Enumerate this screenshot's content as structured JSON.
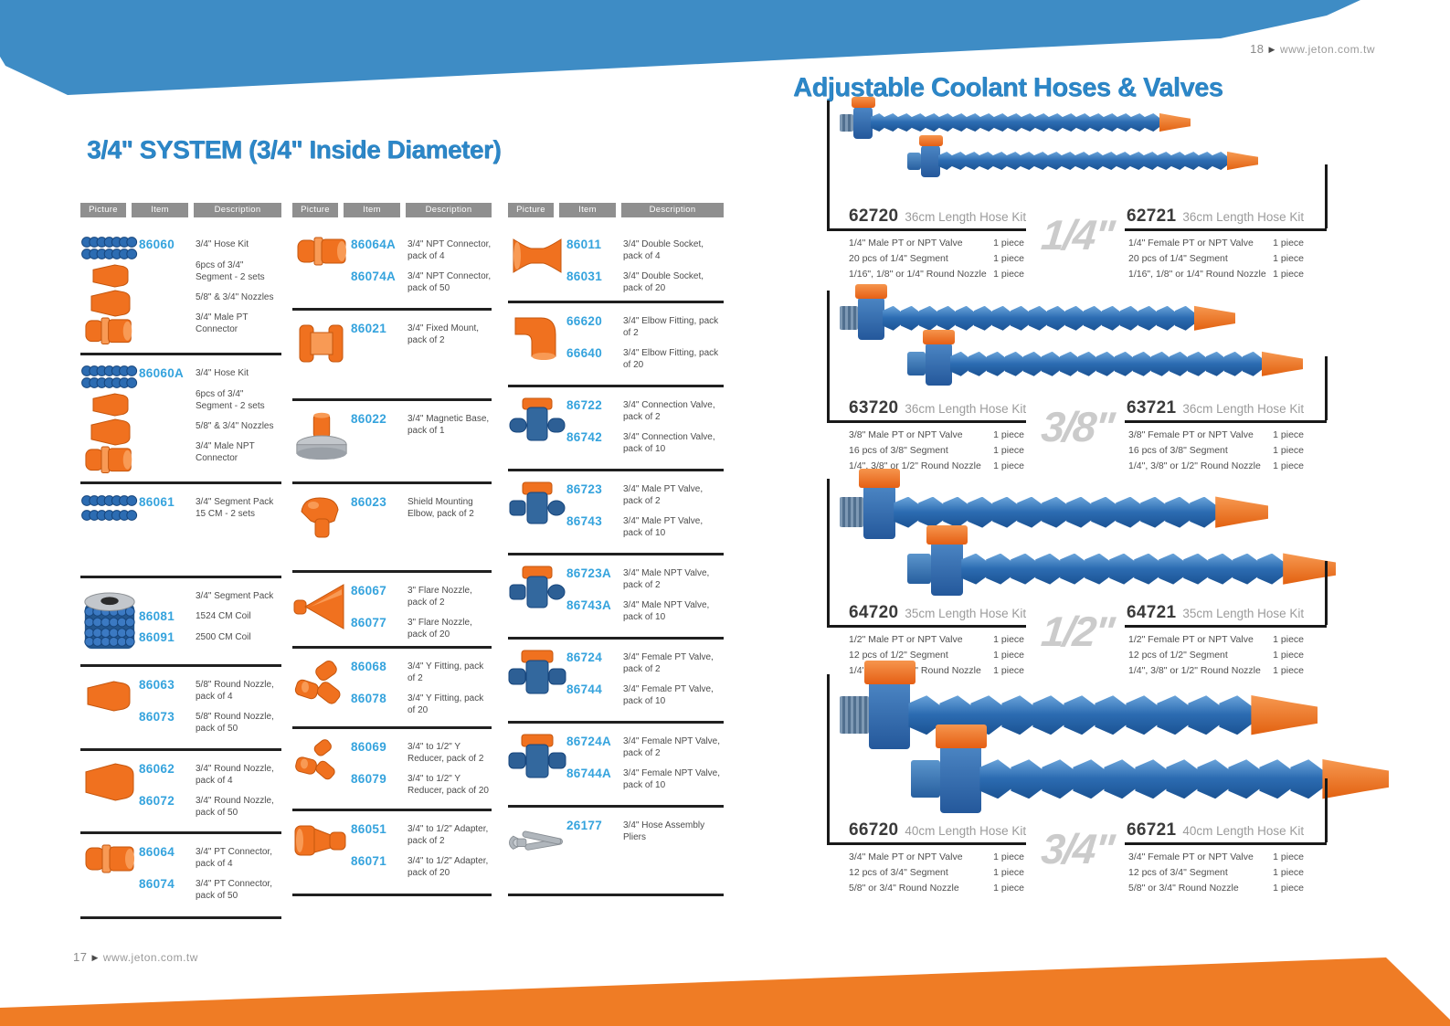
{
  "page": {
    "left_title": "3/4\" SYSTEM (3/4\" Inside Diameter)",
    "right_title": "Adjustable Coolant Hoses & Valves",
    "left_page_number": "17",
    "right_page_number": "18",
    "site_url": "www.jeton.com.tw",
    "arrow_icon": "▶",
    "colors": {
      "band_blue": "#3e8cc5",
      "band_orange": "#ef7c25",
      "title_blue": "#2c87c8",
      "item_blue": "#35a3dd",
      "header_gray": "#8f8f8f",
      "hose_blue": "#2c6cb2",
      "part_orange": "#f0711f"
    }
  },
  "table": {
    "headers": [
      "Picture",
      "Item",
      "Description"
    ],
    "columns": [
      [
        {
          "icon": "hose-kit",
          "lines": [
            {
              "item": "86060",
              "desc": "3/4\" Hose Kit"
            },
            {
              "desc": "6pcs of 3/4\" Segment - 2 sets"
            },
            {
              "desc": "5/8\" & 3/4\" Nozzles"
            },
            {
              "desc": "3/4\" Male PT Connector"
            }
          ]
        },
        {
          "icon": "hose-kit",
          "lines": [
            {
              "item": "86060A",
              "desc": "3/4\" Hose Kit"
            },
            {
              "desc": "6pcs of 3/4\" Segment - 2 sets"
            },
            {
              "desc": "5/8\" & 3/4\" Nozzles"
            },
            {
              "desc": "3/4\" Male NPT Connector"
            }
          ]
        },
        {
          "icon": "segments",
          "lines": [
            {
              "item": "86061",
              "desc": "3/4\" Segment Pack 15 CM - 2 sets"
            }
          ]
        },
        {
          "icon": "coil",
          "lines": [
            {
              "desc": "3/4\" Segment Pack"
            },
            {
              "item": "86081",
              "desc": "1524 CM Coil"
            },
            {
              "item": "86091",
              "desc": "2500 CM Coil"
            }
          ]
        },
        {
          "icon": "nozzle-sm",
          "lines": [
            {
              "item": "86063",
              "desc": "5/8\" Round Nozzle, pack of 4"
            },
            {
              "item": "86073",
              "desc": "5/8\" Round Nozzle, pack of 50"
            }
          ]
        },
        {
          "icon": "nozzle",
          "lines": [
            {
              "item": "86062",
              "desc": "3/4\" Round Nozzle, pack of 4"
            },
            {
              "item": "86072",
              "desc": "3/4\" Round Nozzle, pack of 50"
            }
          ]
        },
        {
          "icon": "connector",
          "lines": [
            {
              "item": "86064",
              "desc": "3/4\" PT Connector, pack of 4"
            },
            {
              "item": "86074",
              "desc": "3/4\" PT Connector, pack of 50"
            }
          ]
        }
      ],
      [
        {
          "icon": "connector",
          "lines": [
            {
              "item": "86064A",
              "desc": "3/4\" NPT Connector, pack of 4"
            },
            {
              "item": "86074A",
              "desc": "3/4\" NPT Connector, pack of 50"
            }
          ]
        },
        {
          "icon": "fixed-mount",
          "lines": [
            {
              "item": "86021",
              "desc": "3/4\" Fixed Mount, pack of 2"
            }
          ]
        },
        {
          "icon": "magnetic-base",
          "lines": [
            {
              "item": "86022",
              "desc": "3/4\" Magnetic Base, pack of 1"
            }
          ]
        },
        {
          "icon": "shield-elbow",
          "lines": [
            {
              "item": "86023",
              "desc": "Shield Mounting Elbow, pack of 2"
            }
          ]
        },
        {
          "icon": "flare-nozzle",
          "lines": [
            {
              "item": "86067",
              "desc": "3\" Flare Nozzle, pack of 2"
            },
            {
              "item": "86077",
              "desc": "3\" Flare Nozzle, pack of 20"
            }
          ]
        },
        {
          "icon": "y-fitting",
          "lines": [
            {
              "item": "86068",
              "desc": "3/4\" Y Fitting, pack of 2"
            },
            {
              "item": "86078",
              "desc": "3/4\" Y Fitting, pack of 20"
            }
          ]
        },
        {
          "icon": "y-reducer",
          "lines": [
            {
              "item": "86069",
              "desc": "3/4\" to 1/2\" Y Reducer, pack of 2"
            },
            {
              "item": "86079",
              "desc": "3/4\" to 1/2\" Y Reducer, pack of 20"
            }
          ]
        },
        {
          "icon": "adapter",
          "lines": [
            {
              "item": "86051",
              "desc": "3/4\" to 1/2\" Adapter, pack of 2"
            },
            {
              "item": "86071",
              "desc": "3/4\" to 1/2\" Adapter, pack of 20"
            }
          ]
        }
      ],
      [
        {
          "icon": "double-socket",
          "lines": [
            {
              "item": "86011",
              "desc": "3/4\" Double Socket, pack of 4"
            },
            {
              "item": "86031",
              "desc": "3/4\" Double Socket, pack of 20"
            }
          ]
        },
        {
          "icon": "elbow",
          "lines": [
            {
              "item": "66620",
              "desc": "3/4\" Elbow Fitting, pack of 2"
            },
            {
              "item": "66640",
              "desc": "3/4\" Elbow Fitting, pack of 20"
            }
          ]
        },
        {
          "icon": "connection-valve",
          "lines": [
            {
              "item": "86722",
              "desc": "3/4\" Connection Valve, pack of 2"
            },
            {
              "item": "86742",
              "desc": "3/4\" Connection Valve, pack of 10"
            }
          ]
        },
        {
          "icon": "valve",
          "lines": [
            {
              "item": "86723",
              "desc": "3/4\" Male PT Valve, pack of 2"
            },
            {
              "item": "86743",
              "desc": "3/4\" Male PT Valve, pack of 10"
            }
          ]
        },
        {
          "icon": "valve",
          "lines": [
            {
              "item": "86723A",
              "desc": "3/4\" Male NPT Valve, pack of 2"
            },
            {
              "item": "86743A",
              "desc": "3/4\" Male NPT Valve, pack of 10"
            }
          ]
        },
        {
          "icon": "valve-female",
          "lines": [
            {
              "item": "86724",
              "desc": "3/4\" Female PT Valve, pack of 2"
            },
            {
              "item": "86744",
              "desc": "3/4\" Female PT Valve, pack of 10"
            }
          ]
        },
        {
          "icon": "valve-female",
          "lines": [
            {
              "item": "86724A",
              "desc": "3/4\" Female NPT Valve, pack of 2"
            },
            {
              "item": "86744A",
              "desc": "3/4\" Female NPT Valve, pack of 10"
            }
          ]
        },
        {
          "icon": "pliers",
          "lines": [
            {
              "item": "26177",
              "desc": "3/4\" Hose Assembly Pliers"
            }
          ]
        }
      ]
    ]
  },
  "kits": [
    {
      "number_left": "62720",
      "number_right": "62721",
      "subtitle": "36cm Length Hose Kit",
      "size_label": "1/4\"",
      "left_specs": [
        {
          "label": "1/4\" Male PT or NPT Valve",
          "value": "1 piece"
        },
        {
          "label": "20 pcs of 1/4\" Segment",
          "value": "1 piece"
        },
        {
          "label": "1/16\", 1/8\" or 1/4\" Round Nozzle",
          "value": "1 piece"
        }
      ],
      "right_specs": [
        {
          "label": "1/4\" Female PT or NPT Valve",
          "value": "1 piece"
        },
        {
          "label": "20 pcs of 1/4\" Segment",
          "value": "1 piece"
        },
        {
          "label": "1/16\", 1/8\" or 1/4\" Round Nozzle",
          "value": "1 piece"
        }
      ]
    },
    {
      "number_left": "63720",
      "number_right": "63721",
      "subtitle": "36cm Length Hose Kit",
      "size_label": "3/8\"",
      "left_specs": [
        {
          "label": "3/8\" Male PT or NPT Valve",
          "value": "1 piece"
        },
        {
          "label": "16 pcs of 3/8\" Segment",
          "value": "1 piece"
        },
        {
          "label": "1/4\", 3/8\" or 1/2\" Round Nozzle",
          "value": "1 piece"
        }
      ],
      "right_specs": [
        {
          "label": "3/8\" Female PT or NPT Valve",
          "value": "1 piece"
        },
        {
          "label": "16 pcs of 3/8\" Segment",
          "value": "1 piece"
        },
        {
          "label": "1/4\", 3/8\" or 1/2\" Round Nozzle",
          "value": "1 piece"
        }
      ]
    },
    {
      "number_left": "64720",
      "number_right": "64721",
      "subtitle": "35cm Length Hose Kit",
      "size_label": "1/2\"",
      "left_specs": [
        {
          "label": "1/2\" Male PT or NPT Valve",
          "value": "1 piece"
        },
        {
          "label": "12 pcs of 1/2\" Segment",
          "value": "1 piece"
        },
        {
          "label": "1/4\", 3/8\" or 1/2\" Round Nozzle",
          "value": "1 piece"
        }
      ],
      "right_specs": [
        {
          "label": "1/2\" Female PT or NPT Valve",
          "value": "1 piece"
        },
        {
          "label": "12 pcs of 1/2\" Segment",
          "value": "1 piece"
        },
        {
          "label": "1/4\", 3/8\" or 1/2\" Round Nozzle",
          "value": "1 piece"
        }
      ]
    },
    {
      "number_left": "66720",
      "number_right": "66721",
      "subtitle": "40cm Length Hose Kit",
      "size_label": "3/4\"",
      "left_specs": [
        {
          "label": "3/4\" Male PT or NPT Valve",
          "value": "1 piece"
        },
        {
          "label": "12 pcs of 3/4\" Segment",
          "value": "1 piece"
        },
        {
          "label": "5/8\" or 3/4\" Round Nozzle",
          "value": "1 piece"
        }
      ],
      "right_specs": [
        {
          "label": "3/4\" Female PT or NPT Valve",
          "value": "1 piece"
        },
        {
          "label": "12 pcs of 3/4\" Segment",
          "value": "1 piece"
        },
        {
          "label": "5/8\" or 3/4\" Round Nozzle",
          "value": "1 piece"
        }
      ]
    }
  ]
}
